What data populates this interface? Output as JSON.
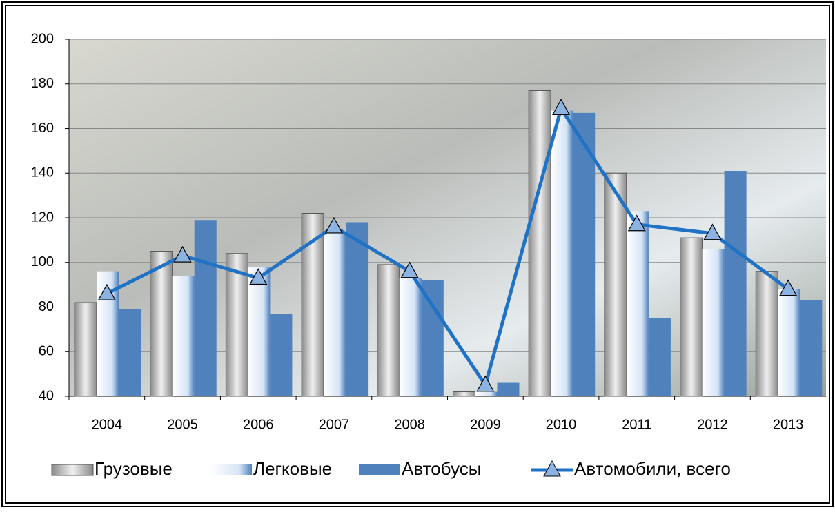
{
  "chart_data": {
    "type": "bar-line",
    "categories": [
      "2004",
      "2005",
      "2006",
      "2007",
      "2008",
      "2009",
      "2010",
      "2011",
      "2012",
      "2013"
    ],
    "series": [
      {
        "name": "Грузовые",
        "type": "bar",
        "color": "#c8c8c8",
        "values": [
          82,
          105,
          104,
          122,
          99,
          42,
          177,
          140,
          111,
          96
        ]
      },
      {
        "name": "Легковые",
        "type": "bar",
        "color": "#dce8f8",
        "values": [
          96,
          94,
          98,
          113,
          93,
          42,
          168,
          123,
          106,
          88
        ]
      },
      {
        "name": "Автобусы",
        "type": "bar",
        "color": "#4f81bd",
        "values": [
          79,
          119,
          77,
          118,
          92,
          46,
          167,
          75,
          141,
          83
        ]
      },
      {
        "name": "Автомобили, всего",
        "type": "line",
        "color": "#1f72c4",
        "values": [
          86,
          103,
          93,
          116,
          96,
          45,
          169,
          117,
          113,
          88
        ]
      }
    ],
    "ylim": [
      40,
      200
    ],
    "yticks": [
      40,
      60,
      80,
      100,
      120,
      140,
      160,
      180,
      200
    ],
    "grid": true
  }
}
